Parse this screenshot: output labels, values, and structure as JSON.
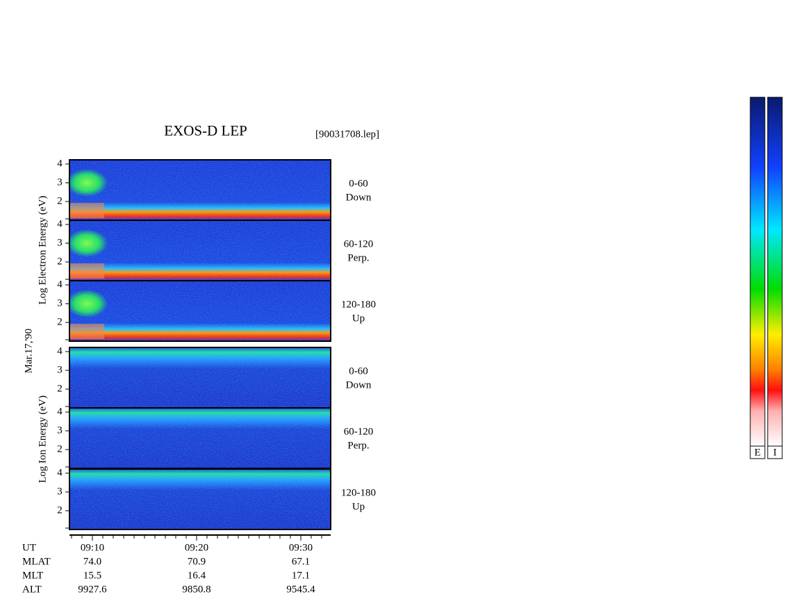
{
  "title": "EXOS-D LEP",
  "file": "[90031708.lep]",
  "date": "Mar.17,'90",
  "electron_axis_label": "Log Electron Energy (eV)",
  "ion_axis_label": "Log Ion Energy (eV)",
  "panels": [
    {
      "yticks": [
        "4",
        "3",
        "2"
      ],
      "angle": "0-60",
      "direction": "Down"
    },
    {
      "yticks": [
        "4",
        "3",
        "2"
      ],
      "angle": "60-120",
      "direction": "Perp."
    },
    {
      "yticks": [
        "4",
        "3",
        "2"
      ],
      "angle": "120-180",
      "direction": "Up"
    },
    {
      "yticks": [
        "4",
        "3",
        "2"
      ],
      "angle": "0-60",
      "direction": "Down"
    },
    {
      "yticks": [
        "4",
        "3",
        "2"
      ],
      "angle": "60-120",
      "direction": "Perp."
    },
    {
      "yticks": [
        "4",
        "3",
        "2"
      ],
      "angle": "120-180",
      "direction": "Up"
    }
  ],
  "x_rows": [
    {
      "label": "UT",
      "values": [
        "09:10",
        "09:20",
        "09:30"
      ]
    },
    {
      "label": "MLAT",
      "values": [
        "74.0",
        "70.9",
        "67.1"
      ]
    },
    {
      "label": "MLT",
      "values": [
        "15.5",
        "16.4",
        "17.1"
      ]
    },
    {
      "label": "ALT",
      "values": [
        "9927.6",
        "9850.8",
        "9545.4"
      ]
    }
  ],
  "colorbars": [
    "E",
    "I"
  ]
}
